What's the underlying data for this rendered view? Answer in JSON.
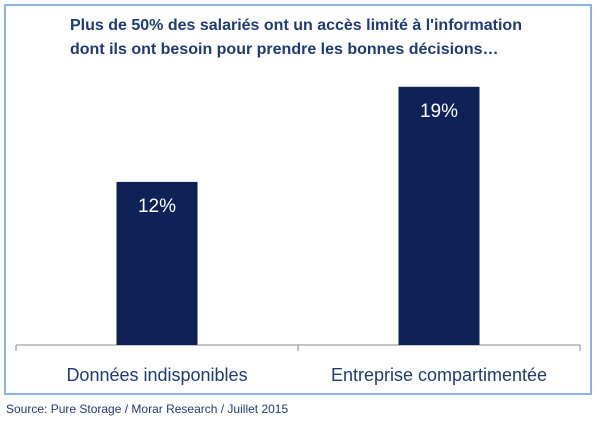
{
  "chart_data": {
    "type": "bar",
    "title_lines": [
      "Plus de 50% des salariés ont un accès limité à l'information",
      "dont ils ont besoin pour prendre les bonnes décisions…"
    ],
    "categories": [
      "Données indisponibles",
      "Entreprise compartimentée"
    ],
    "values": [
      12,
      19
    ],
    "data_labels": [
      "12%",
      "19%"
    ],
    "ylim": [
      0,
      22
    ],
    "grid": false,
    "legend": "none",
    "bar_color": "#0e2257",
    "label_color": "#ffffff",
    "text_color": "#1f3b70"
  },
  "footer": {
    "source": "Source: Pure Storage / Morar Research / Juillet 2015"
  }
}
